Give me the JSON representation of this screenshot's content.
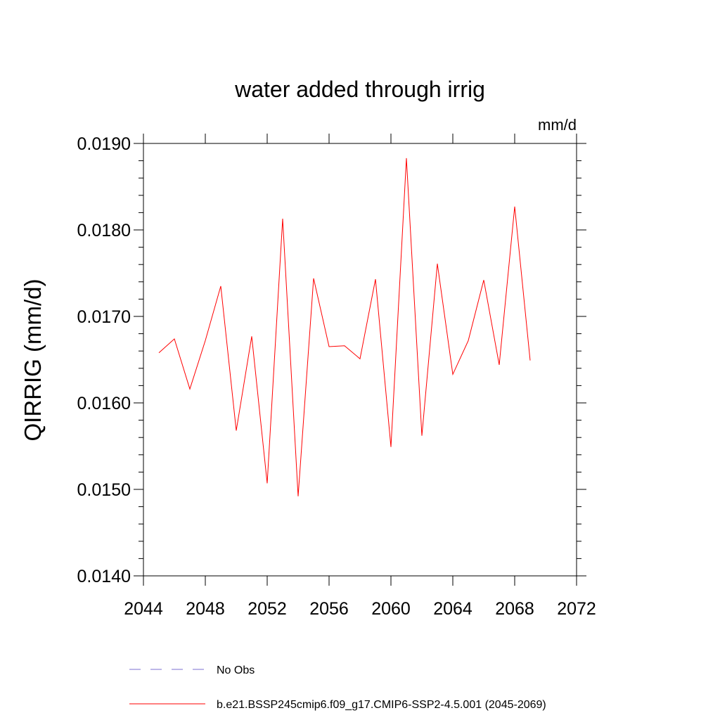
{
  "chart_data": {
    "type": "line",
    "title": "water added through irrig",
    "units_label": "mm/d",
    "ylabel": "QIRRIG  (mm/d)",
    "xlabel": "",
    "xlim": [
      2044,
      2072
    ],
    "ylim": [
      0.014,
      0.019
    ],
    "x_ticks": [
      2044,
      2048,
      2052,
      2056,
      2060,
      2064,
      2068,
      2072
    ],
    "x_tick_labels": [
      "2044",
      "2048",
      "2052",
      "2056",
      "2060",
      "2064",
      "2068",
      "2072"
    ],
    "y_ticks": [
      0.014,
      0.015,
      0.016,
      0.017,
      0.018,
      0.019
    ],
    "y_tick_labels": [
      "0.0140",
      "0.0150",
      "0.0160",
      "0.0170",
      "0.0180",
      "0.0190"
    ],
    "grid": false,
    "legend_placement": "bottom",
    "series": [
      {
        "name": "No Obs",
        "style": "dashed",
        "color": "#7b6fd0",
        "x": [],
        "values": []
      },
      {
        "name": "b.e21.BSSP245cmip6.f09_g17.CMIP6-SSP2-4.5.001 (2045-2069)",
        "style": "solid",
        "color": "#ff0000",
        "x": [
          2045,
          2046,
          2047,
          2048,
          2049,
          2050,
          2051,
          2052,
          2053,
          2054,
          2055,
          2056,
          2057,
          2058,
          2059,
          2060,
          2061,
          2062,
          2063,
          2064,
          2065,
          2066,
          2067,
          2068,
          2069
        ],
        "values": [
          0.01658,
          0.01674,
          0.01616,
          0.01672,
          0.01735,
          0.01568,
          0.01677,
          0.01507,
          0.01813,
          0.01492,
          0.01744,
          0.01665,
          0.01666,
          0.01651,
          0.01743,
          0.01549,
          0.01883,
          0.01562,
          0.01761,
          0.01633,
          0.01672,
          0.01742,
          0.01644,
          0.01827,
          0.01649
        ]
      }
    ]
  }
}
